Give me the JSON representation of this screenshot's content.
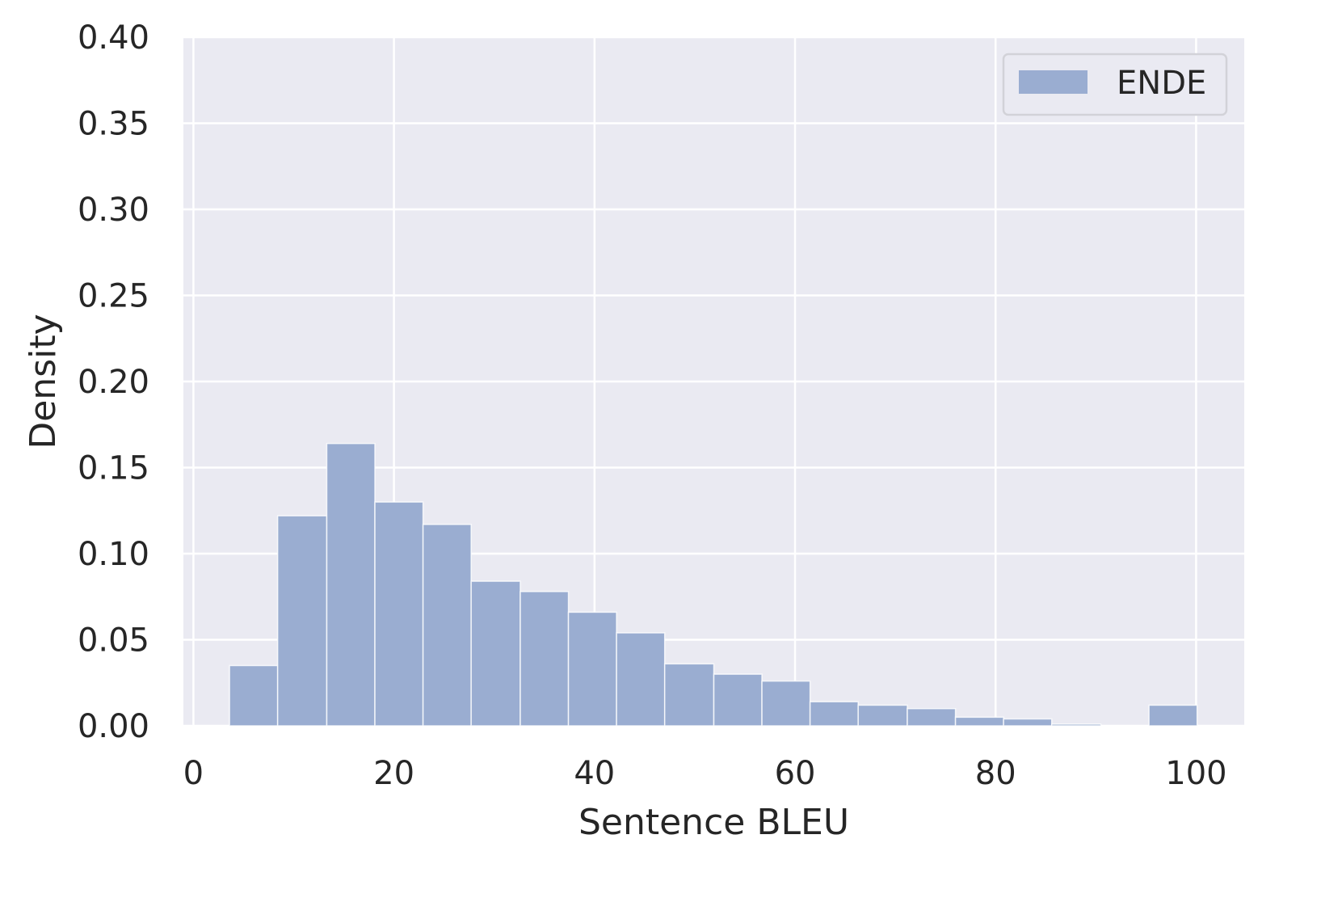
{
  "chart_data": {
    "type": "bar",
    "title": "",
    "xlabel": "Sentence BLEU",
    "ylabel": "Density",
    "xlim": [
      -1.0,
      104.8
    ],
    "ylim": [
      0.0,
      0.4
    ],
    "xticks": [
      0,
      20,
      40,
      60,
      80,
      100
    ],
    "xtick_labels": [
      "0",
      "20",
      "40",
      "60",
      "80",
      "100"
    ],
    "yticks": [
      0.0,
      0.05,
      0.1,
      0.15,
      0.2,
      0.25,
      0.3,
      0.35,
      0.4
    ],
    "ytick_labels": [
      "0.00",
      "0.05",
      "0.10",
      "0.15",
      "0.20",
      "0.25",
      "0.30",
      "0.35",
      "0.40"
    ],
    "grid": true,
    "legend_position": "top-right",
    "bar_color": "#9aadd1",
    "background_color": "#eaeaf2",
    "series": [
      {
        "name": "ENDE",
        "bins": [
          {
            "x0": 3.6,
            "x1": 8.4,
            "value": 0.035
          },
          {
            "x0": 8.4,
            "x1": 13.3,
            "value": 0.122
          },
          {
            "x0": 13.3,
            "x1": 18.1,
            "value": 0.164
          },
          {
            "x0": 18.1,
            "x1": 22.9,
            "value": 0.13
          },
          {
            "x0": 22.9,
            "x1": 27.7,
            "value": 0.117
          },
          {
            "x0": 27.7,
            "x1": 32.6,
            "value": 0.084
          },
          {
            "x0": 32.6,
            "x1": 37.4,
            "value": 0.078
          },
          {
            "x0": 37.4,
            "x1": 42.2,
            "value": 0.066
          },
          {
            "x0": 42.2,
            "x1": 47.0,
            "value": 0.054
          },
          {
            "x0": 47.0,
            "x1": 51.9,
            "value": 0.036
          },
          {
            "x0": 51.9,
            "x1": 56.7,
            "value": 0.03
          },
          {
            "x0": 56.7,
            "x1": 61.5,
            "value": 0.026
          },
          {
            "x0": 61.5,
            "x1": 66.3,
            "value": 0.014
          },
          {
            "x0": 66.3,
            "x1": 71.2,
            "value": 0.012
          },
          {
            "x0": 71.2,
            "x1": 76.0,
            "value": 0.01
          },
          {
            "x0": 76.0,
            "x1": 80.8,
            "value": 0.005
          },
          {
            "x0": 80.8,
            "x1": 85.6,
            "value": 0.004
          },
          {
            "x0": 85.6,
            "x1": 90.5,
            "value": 0.001
          },
          {
            "x0": 90.5,
            "x1": 95.3,
            "value": 0.0
          },
          {
            "x0": 95.3,
            "x1": 100.1,
            "value": 0.012
          }
        ]
      }
    ]
  }
}
